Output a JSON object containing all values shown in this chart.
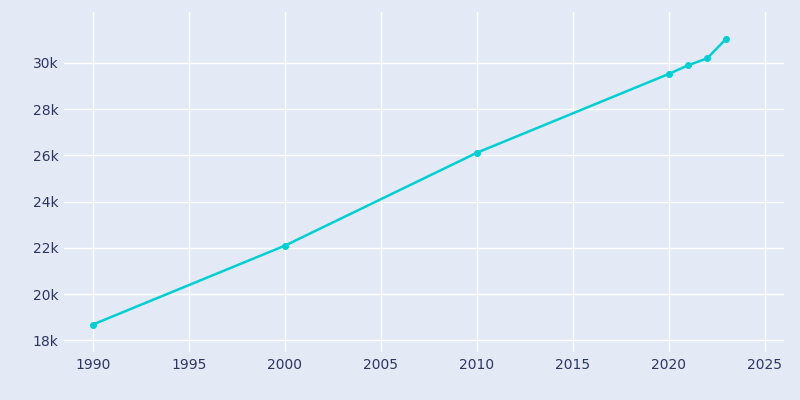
{
  "years": [
    1990,
    2000,
    2010,
    2020,
    2021,
    2022,
    2023
  ],
  "population": [
    18687,
    22096,
    26113,
    29523,
    29893,
    30197,
    31054
  ],
  "line_color": "#00CED1",
  "marker": "o",
  "marker_size": 4,
  "line_width": 1.8,
  "background_color": "#e3eaf5",
  "grid_color": "#ffffff",
  "tick_color": "#2d3561",
  "xlim": [
    1988.5,
    2026
  ],
  "ylim": [
    17500,
    32200
  ],
  "xticks": [
    1990,
    1995,
    2000,
    2005,
    2010,
    2015,
    2020,
    2025
  ],
  "yticks": [
    18000,
    20000,
    22000,
    24000,
    26000,
    28000,
    30000
  ],
  "ytick_labels": [
    "18k",
    "20k",
    "22k",
    "24k",
    "26k",
    "28k",
    "30k"
  ]
}
